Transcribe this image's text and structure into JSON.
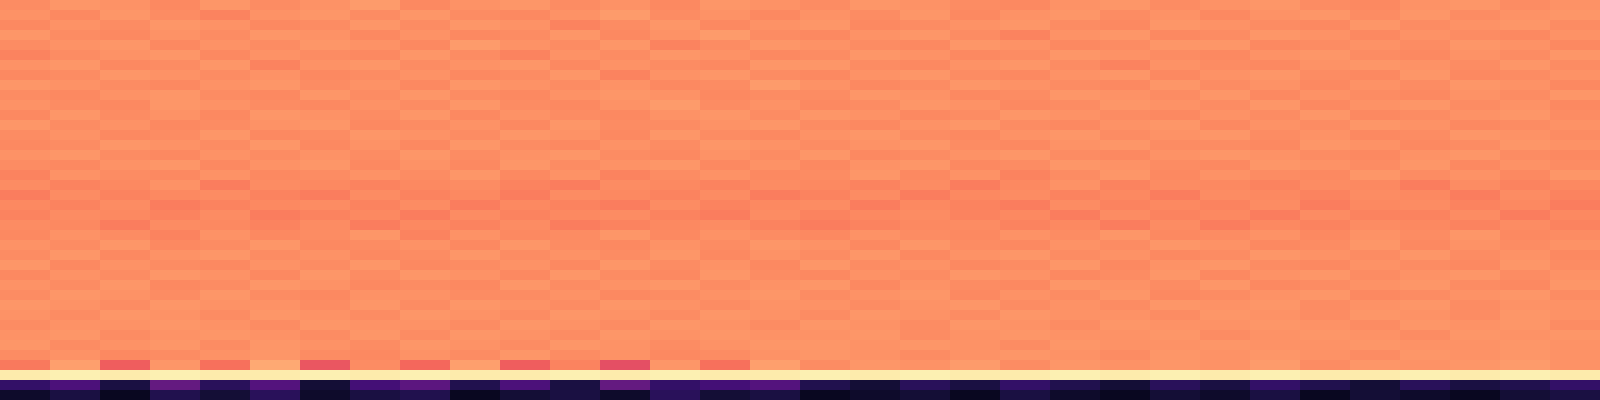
{
  "chart_data": {
    "type": "heatmap",
    "tick_labels": false,
    "zlim": [
      0,
      100
    ],
    "cells": [
      [
        76,
        78,
        77,
        75,
        78,
        76,
        77,
        79,
        75,
        77,
        78,
        76,
        77,
        75,
        78,
        77,
        76,
        78,
        77,
        76,
        75,
        77,
        78,
        76,
        77,
        78,
        76,
        75,
        77,
        78,
        76,
        77
      ],
      [
        77,
        75,
        78,
        76,
        74,
        77,
        78,
        76,
        78,
        76,
        75,
        77,
        79,
        76,
        77,
        75,
        77,
        76,
        78,
        75,
        77,
        78,
        76,
        77,
        75,
        77,
        78,
        76,
        78,
        76,
        77,
        78
      ],
      [
        75,
        77,
        76,
        78,
        77,
        75,
        76,
        78,
        76,
        78,
        77,
        74,
        76,
        78,
        75,
        77,
        78,
        75,
        76,
        77,
        78,
        76,
        75,
        78,
        77,
        76,
        75,
        78,
        76,
        77,
        78,
        76
      ],
      [
        78,
        76,
        75,
        77,
        76,
        78,
        77,
        75,
        77,
        75,
        76,
        78,
        75,
        77,
        79,
        76,
        75,
        77,
        78,
        76,
        74,
        77,
        78,
        75,
        76,
        78,
        77,
        75,
        77,
        76,
        75,
        77
      ],
      [
        76,
        77,
        78,
        75,
        77,
        76,
        78,
        77,
        75,
        79,
        77,
        76,
        78,
        74,
        76,
        78,
        77,
        76,
        75,
        78,
        77,
        75,
        76,
        78,
        78,
        75,
        76,
        77,
        76,
        78,
        77,
        75
      ],
      [
        74,
        76,
        77,
        78,
        75,
        77,
        76,
        75,
        78,
        76,
        74,
        77,
        76,
        78,
        77,
        75,
        76,
        78,
        77,
        75,
        76,
        78,
        77,
        76,
        75,
        77,
        78,
        76,
        75,
        77,
        76,
        78
      ],
      [
        77,
        78,
        75,
        76,
        78,
        74,
        77,
        78,
        76,
        77,
        78,
        75,
        77,
        76,
        75,
        78,
        78,
        76,
        75,
        77,
        78,
        76,
        74,
        77,
        76,
        75,
        77,
        78,
        77,
        76,
        78,
        76
      ],
      [
        75,
        76,
        78,
        77,
        76,
        77,
        75,
        76,
        77,
        75,
        76,
        78,
        74,
        77,
        78,
        76,
        75,
        77,
        78,
        76,
        75,
        77,
        78,
        75,
        77,
        78,
        76,
        75,
        78,
        75,
        76,
        77
      ],
      [
        78,
        77,
        76,
        75,
        77,
        78,
        76,
        77,
        75,
        78,
        77,
        76,
        77,
        75,
        76,
        79,
        77,
        75,
        76,
        78,
        77,
        76,
        75,
        78,
        76,
        77,
        75,
        77,
        76,
        78,
        77,
        75
      ],
      [
        76,
        75,
        77,
        78,
        76,
        75,
        78,
        76,
        78,
        76,
        75,
        77,
        78,
        77,
        75,
        76,
        76,
        78,
        77,
        75,
        76,
        78,
        77,
        76,
        78,
        75,
        77,
        76,
        75,
        77,
        76,
        78
      ],
      [
        77,
        76,
        75,
        78,
        77,
        76,
        75,
        77,
        76,
        78,
        76,
        75,
        77,
        79,
        76,
        77,
        75,
        76,
        78,
        77,
        75,
        76,
        78,
        77,
        76,
        78,
        75,
        77,
        78,
        76,
        77,
        75
      ],
      [
        75,
        78,
        76,
        77,
        75,
        78,
        77,
        76,
        78,
        75,
        77,
        76,
        75,
        77,
        78,
        76,
        78,
        77,
        75,
        76,
        78,
        77,
        76,
        75,
        77,
        76,
        78,
        75,
        76,
        77,
        78,
        76
      ],
      [
        78,
        76,
        77,
        75,
        76,
        77,
        78,
        75,
        76,
        77,
        75,
        78,
        76,
        76,
        77,
        78,
        76,
        75,
        77,
        78,
        76,
        75,
        77,
        78,
        75,
        77,
        76,
        78,
        77,
        75,
        76,
        77
      ],
      [
        76,
        77,
        75,
        76,
        78,
        75,
        76,
        78,
        77,
        76,
        78,
        77,
        75,
        78,
        76,
        75,
        77,
        78,
        76,
        75,
        77,
        78,
        76,
        77,
        78,
        76,
        77,
        75,
        76,
        78,
        77,
        76
      ],
      [
        75,
        76,
        78,
        77,
        76,
        78,
        75,
        77,
        75,
        78,
        76,
        75,
        77,
        76,
        78,
        77,
        76,
        77,
        78,
        76,
        75,
        77,
        78,
        76,
        76,
        75,
        78,
        77,
        75,
        76,
        78,
        77
      ],
      [
        77,
        78,
        76,
        75,
        77,
        76,
        77,
        76,
        78,
        76,
        77,
        78,
        76,
        75,
        77,
        76,
        78,
        75,
        76,
        77,
        78,
        76,
        75,
        77,
        78,
        77,
        76,
        75,
        77,
        78,
        76,
        75
      ],
      [
        76,
        75,
        77,
        78,
        75,
        77,
        78,
        75,
        77,
        75,
        78,
        76,
        77,
        78,
        75,
        77,
        75,
        77,
        78,
        75,
        76,
        78,
        77,
        76,
        75,
        78,
        77,
        76,
        78,
        75,
        77,
        76
      ],
      [
        74,
        77,
        76,
        75,
        77,
        75,
        76,
        77,
        76,
        78,
        75,
        77,
        74,
        76,
        77,
        75,
        76,
        78,
        75,
        77,
        74,
        76,
        78,
        75,
        77,
        76,
        75,
        78,
        76,
        77,
        75,
        78
      ],
      [
        76,
        74,
        75,
        77,
        73,
        76,
        75,
        74,
        75,
        76,
        74,
        73,
        76,
        75,
        74,
        76,
        75,
        74,
        76,
        73,
        75,
        77,
        74,
        76,
        75,
        74,
        76,
        75,
        73,
        76,
        74,
        75
      ],
      [
        73,
        76,
        74,
        75,
        76,
        74,
        73,
        76,
        74,
        75,
        73,
        76,
        75,
        74,
        76,
        73,
        74,
        76,
        73,
        75,
        76,
        74,
        75,
        73,
        76,
        75,
        74,
        76,
        75,
        73,
        76,
        74
      ],
      [
        75,
        74,
        76,
        73,
        74,
        75,
        76,
        74,
        76,
        73,
        75,
        74,
        73,
        76,
        74,
        75,
        76,
        73,
        75,
        74,
        73,
        76,
        74,
        75,
        74,
        76,
        73,
        75,
        76,
        74,
        75,
        73
      ],
      [
        74,
        76,
        75,
        74,
        76,
        73,
        74,
        75,
        73,
        76,
        74,
        75,
        76,
        74,
        73,
        76,
        74,
        75,
        76,
        74,
        75,
        73,
        76,
        74,
        75,
        73,
        76,
        74,
        74,
        76,
        73,
        75
      ],
      [
        76,
        75,
        73,
        76,
        75,
        74,
        76,
        73,
        75,
        74,
        76,
        73,
        74,
        75,
        76,
        74,
        73,
        74,
        75,
        76,
        74,
        75,
        73,
        76,
        73,
        75,
        74,
        76,
        75,
        74,
        76,
        74
      ],
      [
        75,
        77,
        76,
        74,
        77,
        75,
        76,
        78,
        74,
        77,
        75,
        76,
        78,
        75,
        77,
        76,
        75,
        77,
        76,
        75,
        77,
        76,
        78,
        75,
        76,
        77,
        75,
        77,
        76,
        78,
        75,
        76
      ],
      [
        77,
        76,
        78,
        75,
        76,
        78,
        75,
        76,
        77,
        75,
        78,
        76,
        75,
        77,
        76,
        78,
        77,
        75,
        78,
        76,
        75,
        77,
        76,
        78,
        77,
        75,
        76,
        78,
        75,
        77,
        76,
        77
      ],
      [
        76,
        78,
        75,
        77,
        78,
        76,
        77,
        75,
        76,
        78,
        76,
        77,
        76,
        78,
        75,
        77,
        76,
        78,
        75,
        77,
        78,
        76,
        77,
        75,
        76,
        78,
        77,
        76,
        78,
        76,
        77,
        75
      ],
      [
        78,
        75,
        77,
        76,
        75,
        77,
        76,
        78,
        75,
        76,
        77,
        75,
        78,
        76,
        77,
        75,
        78,
        76,
        77,
        75,
        76,
        78,
        75,
        77,
        78,
        76,
        75,
        77,
        76,
        75,
        78,
        76
      ],
      [
        75,
        77,
        76,
        78,
        77,
        75,
        78,
        76,
        78,
        77,
        75,
        78,
        76,
        75,
        78,
        76,
        75,
        77,
        76,
        78,
        77,
        75,
        76,
        78,
        75,
        77,
        78,
        76,
        77,
        78,
        76,
        77
      ],
      [
        77,
        76,
        78,
        75,
        76,
        78,
        77,
        75,
        76,
        75,
        78,
        76,
        77,
        78,
        76,
        77,
        78,
        75,
        77,
        76,
        75,
        78,
        77,
        76,
        78,
        75,
        76,
        77,
        78,
        76,
        75,
        78
      ],
      [
        76,
        78,
        77,
        76,
        78,
        76,
        75,
        77,
        77,
        76,
        76,
        77,
        75,
        76,
        77,
        78,
        76,
        77,
        78,
        75,
        77,
        76,
        78,
        75,
        76,
        77,
        78,
        75,
        76,
        77,
        78,
        76
      ],
      [
        78,
        77,
        76,
        78,
        77,
        77,
        76,
        78,
        76,
        78,
        77,
        76,
        78,
        77,
        76,
        77,
        77,
        76,
        77,
        78,
        76,
        77,
        76,
        78,
        77,
        78,
        76,
        77,
        78,
        76,
        77,
        77
      ],
      [
        77,
        76,
        78,
        77,
        76,
        78,
        77,
        76,
        78,
        77,
        76,
        78,
        77,
        76,
        78,
        77,
        76,
        78,
        77,
        76,
        78,
        77,
        77,
        76,
        78,
        77,
        76,
        78,
        77,
        76,
        78,
        77
      ],
      [
        76,
        77,
        77,
        78,
        77,
        76,
        78,
        77,
        77,
        76,
        78,
        77,
        76,
        78,
        77,
        76,
        78,
        77,
        76,
        78,
        77,
        76,
        78,
        77,
        77,
        78,
        77,
        76,
        78,
        77,
        78,
        76
      ],
      [
        77,
        78,
        76,
        77,
        78,
        77,
        76,
        78,
        76,
        78,
        77,
        76,
        78,
        77,
        78,
        77,
        77,
        78,
        76,
        77,
        78,
        77,
        77,
        78,
        76,
        77,
        78,
        77,
        76,
        78,
        77,
        78
      ],
      [
        78,
        76,
        77,
        78,
        76,
        78,
        77,
        76,
        78,
        77,
        76,
        78,
        77,
        76,
        77,
        78,
        78,
        77,
        78,
        77,
        76,
        78,
        77,
        77,
        78,
        77,
        77,
        78,
        77,
        77,
        78,
        77
      ],
      [
        76,
        77,
        75,
        76,
        77,
        78,
        76,
        75,
        77,
        76,
        78,
        76,
        77,
        75,
        76,
        77,
        78,
        77,
        76,
        77,
        78,
        77,
        76,
        78,
        77,
        78,
        77,
        76,
        78,
        77,
        78,
        77
      ],
      [
        72,
        80,
        66,
        78,
        70,
        82,
        64,
        76,
        68,
        80,
        66,
        74,
        62,
        78,
        70,
        80,
        76,
        78,
        77,
        79,
        76,
        78,
        77,
        78,
        77,
        79,
        76,
        78,
        77,
        78,
        79,
        77
      ],
      [
        96,
        97,
        96,
        97,
        96,
        96,
        97,
        96,
        97,
        96,
        96,
        97,
        96,
        97,
        96,
        96,
        97,
        96,
        97,
        96,
        96,
        97,
        96,
        97,
        96,
        97,
        96,
        96,
        97,
        96,
        97,
        96
      ],
      [
        18,
        24,
        12,
        30,
        16,
        26,
        10,
        22,
        28,
        14,
        24,
        12,
        30,
        18,
        22,
        26,
        14,
        10,
        16,
        12,
        18,
        14,
        10,
        16,
        12,
        18,
        14,
        10,
        16,
        12,
        14,
        18
      ],
      [
        8,
        12,
        6,
        14,
        10,
        16,
        8,
        12,
        14,
        6,
        10,
        12,
        8,
        16,
        10,
        12,
        6,
        8,
        10,
        6,
        12,
        8,
        6,
        10,
        8,
        12,
        6,
        10,
        8,
        6,
        10,
        12
      ]
    ]
  }
}
